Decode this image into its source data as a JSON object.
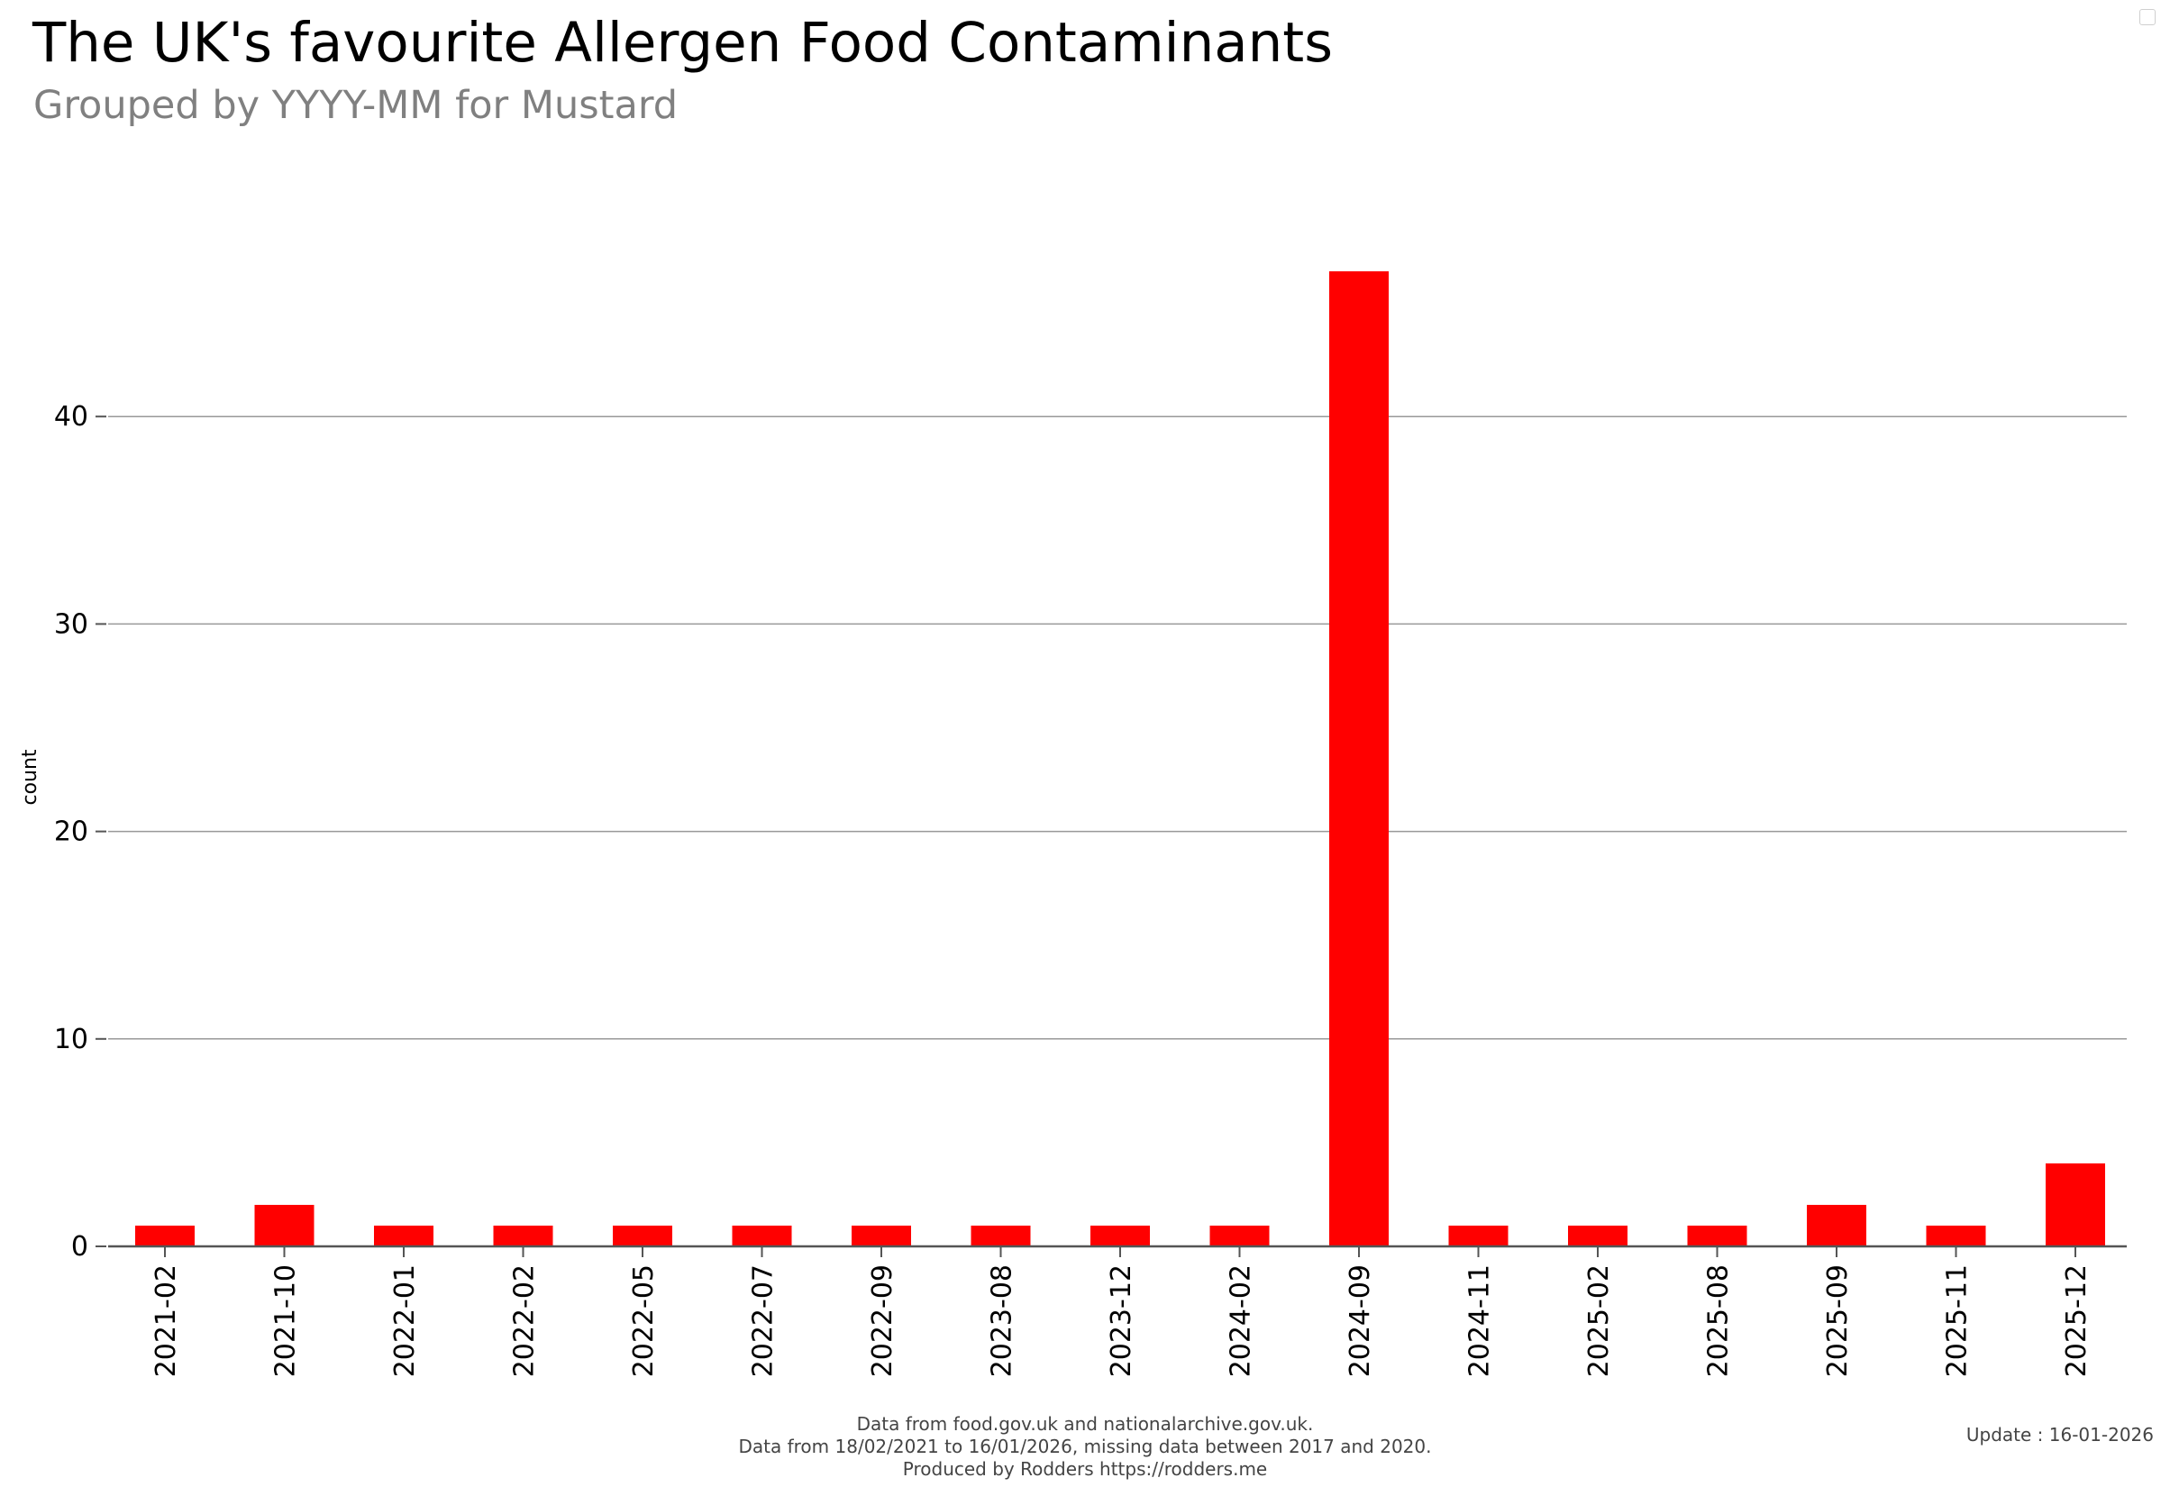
{
  "title": "The UK's favourite Allergen Food Contaminants",
  "subtitle": "Grouped by YYYY-MM for Mustard",
  "footer": {
    "line1": "Data from food.gov.uk and nationalarchive.gov.uk.",
    "line2": "Data from 18/02/2021 to 16/01/2026, missing data between 2017 and 2020.",
    "line3": "Produced by Rodders https://rodders.me",
    "update": "Update : 16-01-2026"
  },
  "colors": {
    "bar": "#ff0000",
    "grid": "#999999",
    "axis": "#555555"
  },
  "chart_data": {
    "type": "bar",
    "title": "The UK's favourite Allergen Food Contaminants",
    "subtitle": "Grouped by YYYY-MM for Mustard",
    "xlabel": "",
    "ylabel": "count",
    "categories": [
      "2021-02",
      "2021-10",
      "2022-01",
      "2022-02",
      "2022-05",
      "2022-07",
      "2022-09",
      "2023-08",
      "2023-12",
      "2024-02",
      "2024-09",
      "2024-11",
      "2025-02",
      "2025-08",
      "2025-09",
      "2025-11",
      "2025-12"
    ],
    "values": [
      1,
      2,
      1,
      1,
      1,
      1,
      1,
      1,
      1,
      1,
      47,
      1,
      1,
      1,
      2,
      1,
      4
    ],
    "ylim": [
      0,
      50
    ],
    "yticks": [
      0,
      10,
      20,
      30,
      40
    ],
    "grid": "horizontal",
    "legend": "none"
  }
}
